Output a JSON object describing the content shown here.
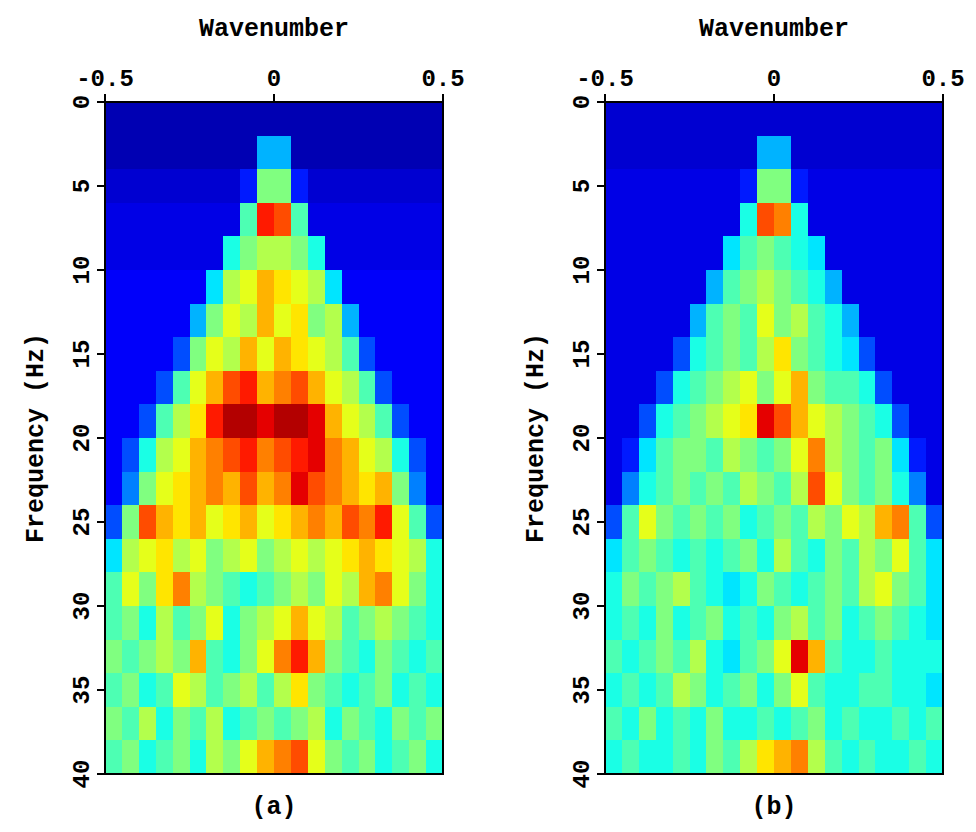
{
  "chart_data": [
    {
      "type": "heatmap",
      "title": "(a)",
      "x_label": "Wavenumber",
      "y_label": "Frequency (Hz)",
      "xlim": [
        -0.5,
        0.5
      ],
      "xticks": [
        -0.5,
        0,
        0.5
      ],
      "ylim": [
        0,
        40
      ],
      "yticks": [
        0,
        5,
        10,
        15,
        20,
        25,
        30,
        35,
        40
      ],
      "zlim": [
        0,
        1
      ],
      "z": [
        [
          0.05,
          0.05,
          0.05,
          0.05,
          0.05,
          0.05,
          0.05,
          0.05,
          0.05,
          0.05,
          0.05,
          0.05,
          0.05,
          0.05,
          0.05,
          0.05,
          0.05,
          0.05,
          0.05,
          0.05
        ],
        [
          0.05,
          0.05,
          0.05,
          0.05,
          0.05,
          0.05,
          0.05,
          0.05,
          0.05,
          0.3,
          0.3,
          0.05,
          0.05,
          0.05,
          0.05,
          0.05,
          0.05,
          0.05,
          0.05,
          0.05
        ],
        [
          0.08,
          0.08,
          0.08,
          0.08,
          0.08,
          0.08,
          0.08,
          0.08,
          0.15,
          0.5,
          0.5,
          0.15,
          0.08,
          0.08,
          0.08,
          0.08,
          0.08,
          0.08,
          0.08,
          0.08
        ],
        [
          0.1,
          0.1,
          0.1,
          0.1,
          0.1,
          0.1,
          0.1,
          0.1,
          0.45,
          0.85,
          0.8,
          0.45,
          0.1,
          0.1,
          0.1,
          0.1,
          0.1,
          0.1,
          0.1,
          0.1
        ],
        [
          0.1,
          0.1,
          0.1,
          0.1,
          0.1,
          0.1,
          0.1,
          0.4,
          0.5,
          0.55,
          0.55,
          0.5,
          0.4,
          0.1,
          0.1,
          0.1,
          0.1,
          0.1,
          0.1,
          0.1
        ],
        [
          0.12,
          0.12,
          0.12,
          0.12,
          0.12,
          0.12,
          0.35,
          0.55,
          0.6,
          0.7,
          0.65,
          0.6,
          0.55,
          0.35,
          0.12,
          0.12,
          0.12,
          0.12,
          0.12,
          0.12
        ],
        [
          0.12,
          0.12,
          0.12,
          0.12,
          0.12,
          0.3,
          0.5,
          0.6,
          0.55,
          0.7,
          0.6,
          0.65,
          0.5,
          0.55,
          0.3,
          0.12,
          0.12,
          0.12,
          0.12,
          0.12
        ],
        [
          0.12,
          0.12,
          0.12,
          0.12,
          0.2,
          0.5,
          0.6,
          0.55,
          0.7,
          0.6,
          0.7,
          0.65,
          0.6,
          0.55,
          0.45,
          0.2,
          0.12,
          0.12,
          0.12,
          0.12
        ],
        [
          0.12,
          0.12,
          0.12,
          0.2,
          0.45,
          0.6,
          0.7,
          0.8,
          0.85,
          0.7,
          0.75,
          0.8,
          0.7,
          0.6,
          0.55,
          0.45,
          0.2,
          0.12,
          0.12,
          0.12
        ],
        [
          0.12,
          0.12,
          0.2,
          0.45,
          0.55,
          0.65,
          0.85,
          0.95,
          0.95,
          0.9,
          0.95,
          0.95,
          0.9,
          0.7,
          0.6,
          0.55,
          0.45,
          0.2,
          0.12,
          0.12
        ],
        [
          0.12,
          0.2,
          0.4,
          0.55,
          0.6,
          0.7,
          0.75,
          0.8,
          0.85,
          0.75,
          0.8,
          0.85,
          0.9,
          0.75,
          0.7,
          0.6,
          0.55,
          0.4,
          0.2,
          0.12
        ],
        [
          0.12,
          0.25,
          0.5,
          0.6,
          0.65,
          0.7,
          0.75,
          0.7,
          0.8,
          0.7,
          0.75,
          0.9,
          0.8,
          0.75,
          0.7,
          0.65,
          0.7,
          0.5,
          0.25,
          0.12
        ],
        [
          0.2,
          0.5,
          0.8,
          0.7,
          0.65,
          0.7,
          0.6,
          0.65,
          0.7,
          0.6,
          0.65,
          0.7,
          0.75,
          0.7,
          0.8,
          0.75,
          0.85,
          0.6,
          0.45,
          0.2
        ],
        [
          0.35,
          0.55,
          0.6,
          0.65,
          0.55,
          0.6,
          0.5,
          0.55,
          0.6,
          0.5,
          0.55,
          0.6,
          0.55,
          0.6,
          0.65,
          0.7,
          0.65,
          0.6,
          0.55,
          0.4
        ],
        [
          0.45,
          0.6,
          0.5,
          0.65,
          0.75,
          0.55,
          0.5,
          0.45,
          0.4,
          0.45,
          0.5,
          0.55,
          0.5,
          0.6,
          0.55,
          0.7,
          0.75,
          0.6,
          0.5,
          0.4
        ],
        [
          0.45,
          0.5,
          0.4,
          0.55,
          0.45,
          0.5,
          0.6,
          0.4,
          0.5,
          0.55,
          0.6,
          0.7,
          0.6,
          0.55,
          0.45,
          0.5,
          0.55,
          0.5,
          0.45,
          0.4
        ],
        [
          0.5,
          0.45,
          0.5,
          0.55,
          0.5,
          0.7,
          0.45,
          0.4,
          0.5,
          0.6,
          0.75,
          0.85,
          0.7,
          0.5,
          0.45,
          0.4,
          0.5,
          0.45,
          0.4,
          0.45
        ],
        [
          0.45,
          0.5,
          0.4,
          0.45,
          0.6,
          0.55,
          0.45,
          0.5,
          0.55,
          0.45,
          0.55,
          0.65,
          0.5,
          0.45,
          0.4,
          0.45,
          0.5,
          0.4,
          0.45,
          0.4
        ],
        [
          0.5,
          0.45,
          0.55,
          0.4,
          0.5,
          0.45,
          0.55,
          0.4,
          0.45,
          0.5,
          0.45,
          0.5,
          0.55,
          0.4,
          0.5,
          0.45,
          0.4,
          0.5,
          0.45,
          0.5
        ],
        [
          0.45,
          0.5,
          0.4,
          0.45,
          0.5,
          0.4,
          0.55,
          0.5,
          0.6,
          0.7,
          0.75,
          0.8,
          0.6,
          0.5,
          0.45,
          0.5,
          0.4,
          0.45,
          0.5,
          0.4
        ]
      ]
    },
    {
      "type": "heatmap",
      "title": "(b)",
      "x_label": "Wavenumber",
      "y_label": "Frequency (Hz)",
      "xlim": [
        -0.5,
        0.5
      ],
      "xticks": [
        -0.5,
        0,
        0.5
      ],
      "ylim": [
        0,
        40
      ],
      "yticks": [
        0,
        5,
        10,
        15,
        20,
        25,
        30,
        35,
        40
      ],
      "zlim": [
        0,
        1
      ],
      "z": [
        [
          0.08,
          0.08,
          0.08,
          0.08,
          0.08,
          0.08,
          0.08,
          0.08,
          0.08,
          0.08,
          0.08,
          0.08,
          0.08,
          0.08,
          0.08,
          0.08,
          0.08,
          0.08,
          0.08,
          0.08
        ],
        [
          0.08,
          0.08,
          0.08,
          0.08,
          0.08,
          0.08,
          0.08,
          0.08,
          0.08,
          0.3,
          0.3,
          0.08,
          0.08,
          0.08,
          0.08,
          0.08,
          0.08,
          0.08,
          0.08,
          0.08
        ],
        [
          0.1,
          0.1,
          0.1,
          0.1,
          0.1,
          0.1,
          0.1,
          0.1,
          0.15,
          0.5,
          0.5,
          0.15,
          0.1,
          0.1,
          0.1,
          0.1,
          0.1,
          0.1,
          0.1,
          0.1
        ],
        [
          0.1,
          0.1,
          0.1,
          0.1,
          0.1,
          0.1,
          0.1,
          0.1,
          0.4,
          0.8,
          0.75,
          0.4,
          0.1,
          0.1,
          0.1,
          0.1,
          0.1,
          0.1,
          0.1,
          0.1
        ],
        [
          0.1,
          0.1,
          0.1,
          0.1,
          0.1,
          0.1,
          0.1,
          0.35,
          0.45,
          0.5,
          0.45,
          0.4,
          0.35,
          0.1,
          0.1,
          0.1,
          0.1,
          0.1,
          0.1,
          0.1
        ],
        [
          0.1,
          0.1,
          0.1,
          0.1,
          0.1,
          0.1,
          0.3,
          0.45,
          0.5,
          0.55,
          0.5,
          0.45,
          0.4,
          0.3,
          0.1,
          0.1,
          0.1,
          0.1,
          0.1,
          0.1
        ],
        [
          0.1,
          0.1,
          0.1,
          0.1,
          0.1,
          0.3,
          0.45,
          0.5,
          0.45,
          0.6,
          0.5,
          0.55,
          0.45,
          0.4,
          0.3,
          0.1,
          0.1,
          0.1,
          0.1,
          0.1
        ],
        [
          0.1,
          0.1,
          0.1,
          0.1,
          0.2,
          0.4,
          0.45,
          0.5,
          0.45,
          0.55,
          0.65,
          0.5,
          0.45,
          0.4,
          0.35,
          0.2,
          0.1,
          0.1,
          0.1,
          0.1
        ],
        [
          0.1,
          0.1,
          0.1,
          0.2,
          0.4,
          0.45,
          0.5,
          0.55,
          0.6,
          0.5,
          0.6,
          0.7,
          0.5,
          0.45,
          0.45,
          0.4,
          0.2,
          0.1,
          0.1,
          0.1
        ],
        [
          0.1,
          0.1,
          0.2,
          0.4,
          0.45,
          0.5,
          0.55,
          0.6,
          0.65,
          0.9,
          0.8,
          0.7,
          0.6,
          0.55,
          0.5,
          0.45,
          0.4,
          0.2,
          0.1,
          0.1
        ],
        [
          0.1,
          0.15,
          0.35,
          0.45,
          0.5,
          0.5,
          0.45,
          0.55,
          0.5,
          0.45,
          0.5,
          0.6,
          0.75,
          0.55,
          0.5,
          0.45,
          0.5,
          0.35,
          0.15,
          0.1
        ],
        [
          0.1,
          0.25,
          0.4,
          0.45,
          0.5,
          0.45,
          0.5,
          0.45,
          0.55,
          0.5,
          0.45,
          0.55,
          0.8,
          0.6,
          0.5,
          0.45,
          0.5,
          0.4,
          0.25,
          0.1
        ],
        [
          0.2,
          0.45,
          0.6,
          0.5,
          0.45,
          0.5,
          0.45,
          0.5,
          0.4,
          0.45,
          0.5,
          0.45,
          0.55,
          0.5,
          0.6,
          0.55,
          0.7,
          0.75,
          0.45,
          0.2
        ],
        [
          0.35,
          0.45,
          0.5,
          0.45,
          0.4,
          0.45,
          0.4,
          0.45,
          0.5,
          0.4,
          0.55,
          0.45,
          0.4,
          0.5,
          0.45,
          0.55,
          0.5,
          0.6,
          0.45,
          0.35
        ],
        [
          0.4,
          0.5,
          0.45,
          0.5,
          0.55,
          0.45,
          0.4,
          0.35,
          0.4,
          0.5,
          0.45,
          0.4,
          0.45,
          0.5,
          0.45,
          0.55,
          0.6,
          0.5,
          0.45,
          0.35
        ],
        [
          0.4,
          0.45,
          0.4,
          0.5,
          0.4,
          0.45,
          0.5,
          0.4,
          0.45,
          0.4,
          0.5,
          0.55,
          0.45,
          0.5,
          0.4,
          0.45,
          0.5,
          0.45,
          0.4,
          0.35
        ],
        [
          0.45,
          0.4,
          0.45,
          0.5,
          0.45,
          0.55,
          0.4,
          0.35,
          0.45,
          0.5,
          0.6,
          0.9,
          0.7,
          0.45,
          0.4,
          0.4,
          0.45,
          0.4,
          0.4,
          0.4
        ],
        [
          0.4,
          0.45,
          0.4,
          0.45,
          0.55,
          0.5,
          0.4,
          0.45,
          0.5,
          0.4,
          0.5,
          0.6,
          0.45,
          0.4,
          0.4,
          0.45,
          0.45,
          0.4,
          0.4,
          0.35
        ],
        [
          0.45,
          0.4,
          0.5,
          0.4,
          0.45,
          0.4,
          0.5,
          0.4,
          0.4,
          0.45,
          0.4,
          0.45,
          0.5,
          0.4,
          0.45,
          0.4,
          0.4,
          0.45,
          0.4,
          0.45
        ],
        [
          0.4,
          0.45,
          0.4,
          0.4,
          0.45,
          0.4,
          0.5,
          0.45,
          0.55,
          0.65,
          0.7,
          0.75,
          0.55,
          0.45,
          0.4,
          0.45,
          0.4,
          0.4,
          0.45,
          0.4
        ]
      ]
    }
  ]
}
